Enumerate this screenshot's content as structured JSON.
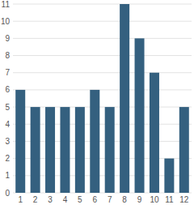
{
  "chart_data": {
    "type": "bar",
    "categories": [
      "1",
      "2",
      "3",
      "4",
      "5",
      "6",
      "7",
      "8",
      "9",
      "10",
      "11",
      "12"
    ],
    "values": [
      6,
      5,
      5,
      5,
      5,
      6,
      5,
      11,
      9,
      7,
      2,
      5
    ],
    "color": "#34607f",
    "ylim": [
      0,
      11
    ],
    "yticks": [
      0,
      1,
      2,
      3,
      4,
      5,
      6,
      7,
      8,
      9,
      10,
      11
    ],
    "grid": true
  }
}
